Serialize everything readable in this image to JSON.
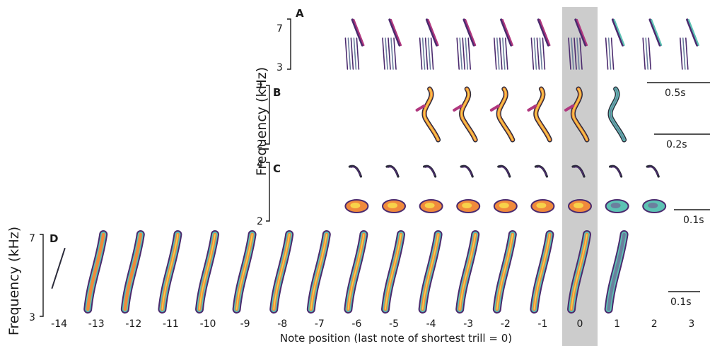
{
  "figure": {
    "panels": [
      {
        "id": "A",
        "label": "A",
        "ytop": "7",
        "ybottom": "3",
        "scalebar": "0.5s",
        "start": -6,
        "end": 3
      },
      {
        "id": "B",
        "label": "B",
        "ytop": "7",
        "ybottom": "2",
        "scalebar": "0.2s",
        "start": -4,
        "end": 1
      },
      {
        "id": "C",
        "label": "C",
        "ytop": "4",
        "ybottom": "2",
        "scalebar": "0.1s",
        "start": -6,
        "end": 2
      },
      {
        "id": "D",
        "label": "D",
        "ytop": "7",
        "ybottom": "3",
        "scalebar": "0.1s",
        "start": -14,
        "end": 1
      }
    ],
    "ylabel_upper": "Frequency (kHz)",
    "ylabel_lower": "Frequency (kHz)",
    "xlabel": "Note position (last note of shortest trill = 0)",
    "xticks": [
      "-14",
      "-13",
      "-12",
      "-11",
      "-10",
      "-9",
      "-8",
      "-7",
      "-6",
      "-5",
      "-4",
      "-3",
      "-2",
      "-1",
      "0",
      "1",
      "2",
      "3"
    ],
    "highlight_position": "0",
    "colors": {
      "highlight": "#cccccc",
      "magenta": "#b0377e",
      "purple": "#4b2a6e",
      "orange": "#f08a3c",
      "yellow": "#f7d24a",
      "teal": "#5cc2b4",
      "slate": "#6b7f9e",
      "dark": "#2b2b3a"
    }
  }
}
